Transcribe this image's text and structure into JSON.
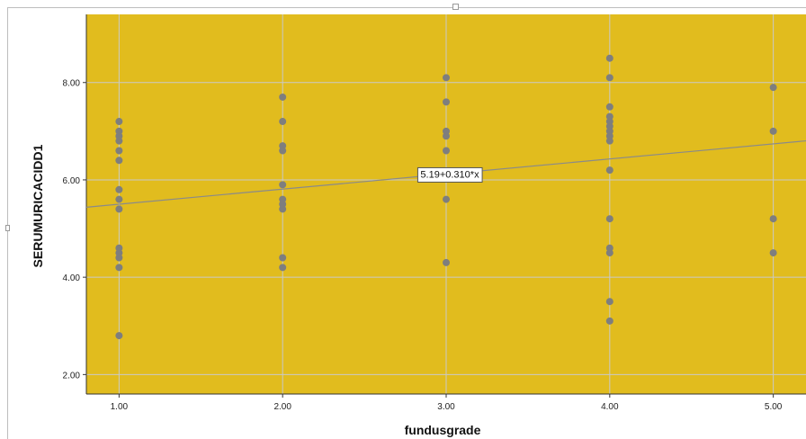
{
  "chart_data": {
    "type": "scatter",
    "xlabel": "fundusgrade",
    "ylabel": "SERUMURICACIDD1",
    "xlim": [
      0.8,
      5.2
    ],
    "ylim": [
      1.6,
      9.4
    ],
    "xticks": [
      1,
      2,
      3,
      4,
      5
    ],
    "yticks": [
      2,
      4,
      6,
      8
    ],
    "xtick_labels": [
      "1.00",
      "2.00",
      "3.00",
      "4.00",
      "5.00"
    ],
    "ytick_labels": [
      "2.00",
      "4.00",
      "6.00",
      "8.00"
    ],
    "grid": true,
    "background_color": "#E1BC1E",
    "point_color": "#7E7E7E",
    "line_color": "#8A8A8A",
    "fit_line": {
      "intercept": 5.19,
      "slope": 0.31,
      "label": "5.19+0.310*x"
    },
    "points": [
      {
        "x": 1,
        "y": 7.2
      },
      {
        "x": 1,
        "y": 7.0
      },
      {
        "x": 1,
        "y": 6.9
      },
      {
        "x": 1,
        "y": 6.8
      },
      {
        "x": 1,
        "y": 6.6
      },
      {
        "x": 1,
        "y": 6.4
      },
      {
        "x": 1,
        "y": 5.8
      },
      {
        "x": 1,
        "y": 5.6
      },
      {
        "x": 1,
        "y": 5.4
      },
      {
        "x": 1,
        "y": 4.6
      },
      {
        "x": 1,
        "y": 4.5
      },
      {
        "x": 1,
        "y": 4.4
      },
      {
        "x": 1,
        "y": 4.2
      },
      {
        "x": 1,
        "y": 2.8
      },
      {
        "x": 2,
        "y": 7.7
      },
      {
        "x": 2,
        "y": 7.2
      },
      {
        "x": 2,
        "y": 6.7
      },
      {
        "x": 2,
        "y": 6.6
      },
      {
        "x": 2,
        "y": 5.9
      },
      {
        "x": 2,
        "y": 5.6
      },
      {
        "x": 2,
        "y": 5.5
      },
      {
        "x": 2,
        "y": 5.4
      },
      {
        "x": 2,
        "y": 4.4
      },
      {
        "x": 2,
        "y": 4.2
      },
      {
        "x": 3,
        "y": 8.1
      },
      {
        "x": 3,
        "y": 7.6
      },
      {
        "x": 3,
        "y": 7.0
      },
      {
        "x": 3,
        "y": 6.9
      },
      {
        "x": 3,
        "y": 6.6
      },
      {
        "x": 3,
        "y": 5.6
      },
      {
        "x": 3,
        "y": 4.3
      },
      {
        "x": 4,
        "y": 8.5
      },
      {
        "x": 4,
        "y": 8.1
      },
      {
        "x": 4,
        "y": 7.5
      },
      {
        "x": 4,
        "y": 7.3
      },
      {
        "x": 4,
        "y": 7.2
      },
      {
        "x": 4,
        "y": 7.1
      },
      {
        "x": 4,
        "y": 7.0
      },
      {
        "x": 4,
        "y": 6.9
      },
      {
        "x": 4,
        "y": 6.8
      },
      {
        "x": 4,
        "y": 6.2
      },
      {
        "x": 4,
        "y": 5.2
      },
      {
        "x": 4,
        "y": 4.6
      },
      {
        "x": 4,
        "y": 4.5
      },
      {
        "x": 4,
        "y": 3.5
      },
      {
        "x": 4,
        "y": 3.1
      },
      {
        "x": 5,
        "y": 7.9
      },
      {
        "x": 5,
        "y": 7.0
      },
      {
        "x": 5,
        "y": 5.2
      },
      {
        "x": 5,
        "y": 4.5
      }
    ]
  }
}
